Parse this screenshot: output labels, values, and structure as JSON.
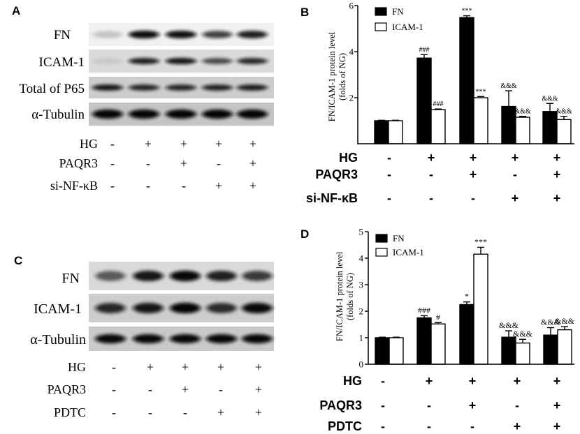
{
  "figure": {
    "panel_A": {
      "letter": "A",
      "blot_labels": [
        "FN",
        "ICAM-1",
        "Total of P65",
        "α-Tubulin"
      ],
      "conditions": [
        {
          "label": "HG",
          "signs": [
            "-",
            "+",
            "+",
            "+",
            "+"
          ]
        },
        {
          "label": "PAQR3",
          "signs": [
            "-",
            "-",
            "+",
            "-",
            "+"
          ]
        },
        {
          "label": "si-NF-κB",
          "signs": [
            "-",
            "-",
            "-",
            "+",
            "+"
          ]
        }
      ]
    },
    "panel_C": {
      "letter": "C",
      "blot_labels": [
        "FN",
        "ICAM-1",
        "α-Tubulin"
      ],
      "conditions": [
        {
          "label": "HG",
          "signs": [
            "-",
            "+",
            "+",
            "+",
            "+"
          ]
        },
        {
          "label": "PAQR3",
          "signs": [
            "-",
            "-",
            "+",
            "-",
            "+"
          ]
        },
        {
          "label": "PDTC",
          "signs": [
            "-",
            "-",
            "-",
            "+",
            "+"
          ]
        }
      ]
    }
  },
  "chart_data": [
    {
      "panel": "B",
      "type": "bar",
      "ylabel": [
        "FN/ICAM-1 protein level",
        "(folds of NG)"
      ],
      "ylim": [
        0,
        6
      ],
      "yticks": [
        2,
        4,
        6
      ],
      "legend": "top-left",
      "grid": false,
      "conditions": [
        {
          "label": "HG",
          "signs": [
            "-",
            "+",
            "+",
            "+",
            "+"
          ]
        },
        {
          "label": "PAQR3",
          "signs": [
            "-",
            "-",
            "+",
            "-",
            "+"
          ]
        },
        {
          "label": "si-NF-κB",
          "signs": [
            "-",
            "-",
            "-",
            "+",
            "+"
          ]
        }
      ],
      "series": [
        {
          "name": "FN",
          "color": "#000000",
          "values": [
            1.0,
            3.72,
            5.48,
            1.62,
            1.4
          ],
          "errors": [
            0.02,
            0.15,
            0.08,
            0.68,
            0.35
          ],
          "annotations": [
            "",
            "###",
            "***",
            "&&&",
            "&&&"
          ]
        },
        {
          "name": "ICAM-1",
          "color": "#ffffff",
          "values": [
            1.0,
            1.48,
            2.0,
            1.15,
            1.05
          ],
          "errors": [
            0.02,
            0.03,
            0.05,
            0.04,
            0.14
          ],
          "annotations": [
            "",
            "###",
            "***",
            "&&&",
            "&&&"
          ]
        }
      ]
    },
    {
      "panel": "D",
      "type": "bar",
      "ylabel": [
        "FN/ICAM-1 protein level",
        "(folds of NG)"
      ],
      "ylim": [
        0,
        5
      ],
      "yticks": [
        0,
        1,
        2,
        3,
        4,
        5
      ],
      "legend": "top-left",
      "grid": false,
      "conditions": [
        {
          "label": "HG",
          "signs": [
            "-",
            "+",
            "+",
            "+",
            "+"
          ]
        },
        {
          "label": "PAQR3",
          "signs": [
            "-",
            "-",
            "+",
            "-",
            "+"
          ]
        },
        {
          "label": "PDTC",
          "signs": [
            "-",
            "-",
            "-",
            "+",
            "+"
          ]
        }
      ],
      "series": [
        {
          "name": "FN",
          "color": "#000000",
          "values": [
            1.0,
            1.75,
            2.25,
            1.02,
            1.1
          ],
          "errors": [
            0.02,
            0.08,
            0.1,
            0.24,
            0.28
          ],
          "annotations": [
            "",
            "###",
            "*",
            "&&&",
            "&&&"
          ]
        },
        {
          "name": "ICAM-1",
          "color": "#ffffff",
          "values": [
            1.0,
            1.52,
            4.15,
            0.8,
            1.3
          ],
          "errors": [
            0.02,
            0.05,
            0.26,
            0.14,
            0.12
          ],
          "annotations": [
            "",
            "#",
            "***",
            "&&&",
            "&&&"
          ]
        }
      ]
    }
  ]
}
